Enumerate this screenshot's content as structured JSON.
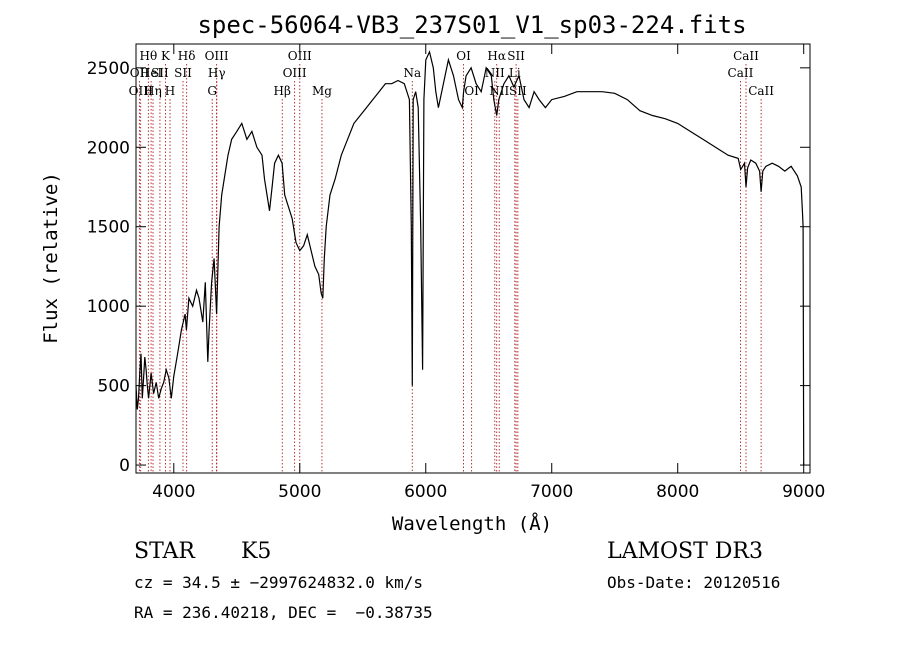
{
  "chart_data": {
    "type": "line",
    "title": "spec-56064-VB3_237S01_V1_sp03-224.fits",
    "xlabel": "Wavelength (Å)",
    "ylabel": "Flux (relative)",
    "xlim": [
      3700,
      9050
    ],
    "ylim": [
      -50,
      2650
    ],
    "xticks": [
      4000,
      5000,
      6000,
      7000,
      8000,
      9000
    ],
    "yticks": [
      0,
      500,
      1000,
      1500,
      2000,
      2500
    ],
    "xtick_labels": [
      "4000",
      "5000",
      "6000",
      "7000",
      "8000",
      "9000"
    ],
    "ytick_labels": [
      "0",
      "500",
      "1000",
      "1500",
      "2000",
      "2500"
    ],
    "line_color": "#000000",
    "marker_color": "#b22222",
    "series": [
      {
        "name": "flux",
        "x": [
          3700,
          3710,
          3720,
          3730,
          3740,
          3750,
          3760,
          3770,
          3780,
          3790,
          3800,
          3820,
          3840,
          3860,
          3880,
          3900,
          3920,
          3940,
          3960,
          3980,
          4000,
          4030,
          4060,
          4090,
          4100,
          4120,
          4150,
          4180,
          4200,
          4230,
          4250,
          4270,
          4280,
          4300,
          4320,
          4340,
          4360,
          4380,
          4400,
          4430,
          4460,
          4500,
          4540,
          4580,
          4620,
          4660,
          4700,
          4720,
          4740,
          4760,
          4780,
          4800,
          4830,
          4860,
          4880,
          4900,
          4920,
          4940,
          4970,
          5000,
          5030,
          5060,
          5090,
          5120,
          5150,
          5170,
          5183,
          5195,
          5210,
          5240,
          5280,
          5330,
          5380,
          5430,
          5480,
          5530,
          5580,
          5630,
          5680,
          5730,
          5780,
          5830,
          5870,
          5885,
          5893,
          5900,
          5920,
          5940,
          5960,
          5975,
          5985,
          6000,
          6030,
          6060,
          6080,
          6100,
          6140,
          6180,
          6220,
          6260,
          6290,
          6300,
          6320,
          6360,
          6400,
          6440,
          6480,
          6520,
          6540,
          6563,
          6580,
          6620,
          6660,
          6700,
          6740,
          6780,
          6820,
          6860,
          6900,
          6950,
          7000,
          7100,
          7200,
          7300,
          7400,
          7500,
          7600,
          7700,
          7800,
          7900,
          8000,
          8100,
          8200,
          8300,
          8400,
          8480,
          8500,
          8530,
          8542,
          8555,
          8580,
          8620,
          8650,
          8662,
          8675,
          8700,
          8750,
          8800,
          8850,
          8900,
          8950,
          8980,
          8990,
          8995,
          9000
        ],
        "y": [
          500,
          350,
          420,
          580,
          700,
          420,
          550,
          680,
          600,
          500,
          420,
          580,
          450,
          520,
          420,
          480,
          520,
          600,
          550,
          420,
          560,
          700,
          850,
          950,
          850,
          1050,
          1000,
          1100,
          1050,
          900,
          1150,
          650,
          850,
          1150,
          1300,
          950,
          1500,
          1700,
          1800,
          1950,
          2050,
          2100,
          2150,
          2050,
          2100,
          2000,
          1950,
          1800,
          1700,
          1600,
          1750,
          1900,
          1950,
          1900,
          1700,
          1650,
          1600,
          1550,
          1400,
          1350,
          1380,
          1450,
          1350,
          1250,
          1200,
          1080,
          1050,
          1300,
          1500,
          1700,
          1800,
          1950,
          2050,
          2150,
          2200,
          2250,
          2300,
          2350,
          2400,
          2400,
          2420,
          2400,
          2300,
          1500,
          500,
          2300,
          2350,
          2250,
          1500,
          600,
          2300,
          2550,
          2600,
          2500,
          2350,
          2250,
          2400,
          2550,
          2450,
          2300,
          2250,
          2350,
          2450,
          2500,
          2400,
          2350,
          2500,
          2450,
          2300,
          2200,
          2300,
          2400,
          2450,
          2380,
          2450,
          2300,
          2250,
          2350,
          2300,
          2250,
          2300,
          2320,
          2350,
          2350,
          2350,
          2340,
          2300,
          2230,
          2200,
          2180,
          2150,
          2100,
          2050,
          2000,
          1950,
          1930,
          1860,
          1900,
          1750,
          1870,
          1920,
          1900,
          1850,
          1720,
          1850,
          1880,
          1900,
          1880,
          1850,
          1880,
          1820,
          1750,
          1600,
          1500,
          0
        ]
      }
    ],
    "lines": [
      {
        "name": "Hθ",
        "w": 3798,
        "row": 1
      },
      {
        "name": "OII",
        "w": 3727,
        "row": 2
      },
      {
        "name": "OIII",
        "w": 3737,
        "row": 3
      },
      {
        "name": "HeI",
        "w": 3820,
        "row": 2
      },
      {
        "name": "Hη",
        "w": 3835,
        "row": 3
      },
      {
        "name": "K",
        "w": 3934,
        "row": 1
      },
      {
        "name": "SII",
        "w": 3890,
        "row": 2
      },
      {
        "name": "H",
        "w": 3970,
        "row": 3
      },
      {
        "name": "Hδ",
        "w": 4102,
        "row": 1
      },
      {
        "name": "SII",
        "w": 4073,
        "row": 2
      },
      {
        "name": "OIII",
        "w": 4340,
        "row": 1
      },
      {
        "name": "Hγ",
        "w": 4341,
        "row": 2
      },
      {
        "name": "G",
        "w": 4305,
        "row": 3
      },
      {
        "name": "OIII",
        "w": 5000,
        "row": 1
      },
      {
        "name": "OIII",
        "w": 4959,
        "row": 2
      },
      {
        "name": "Hβ",
        "w": 4861,
        "row": 3
      },
      {
        "name": "Mg",
        "w": 5176,
        "row": 3
      },
      {
        "name": "Na",
        "w": 5893,
        "row": 2
      },
      {
        "name": "OI",
        "w": 6300,
        "row": 1
      },
      {
        "name": "OI",
        "w": 6364,
        "row": 3
      },
      {
        "name": "Hα",
        "w": 6563,
        "row": 1
      },
      {
        "name": "SII",
        "w": 6717,
        "row": 1
      },
      {
        "name": "NII",
        "w": 6548,
        "row": 2
      },
      {
        "name": "Li",
        "w": 6707,
        "row": 2
      },
      {
        "name": "NII",
        "w": 6583,
        "row": 3
      },
      {
        "name": "SII",
        "w": 6731,
        "row": 3
      },
      {
        "name": "CaII",
        "w": 8542,
        "row": 1
      },
      {
        "name": "CaII",
        "w": 8498,
        "row": 2
      },
      {
        "name": "CaII",
        "w": 8662,
        "row": 3
      }
    ]
  },
  "info": {
    "class_label": "STAR",
    "subclass_label": "K5",
    "survey": "LAMOST DR3",
    "cz": "cz = 34.5 ± −2997624832.0 km/s",
    "obs_date": "Obs-Date: 20120516",
    "radec": "RA = 236.40218, DEC =  −0.38735"
  }
}
